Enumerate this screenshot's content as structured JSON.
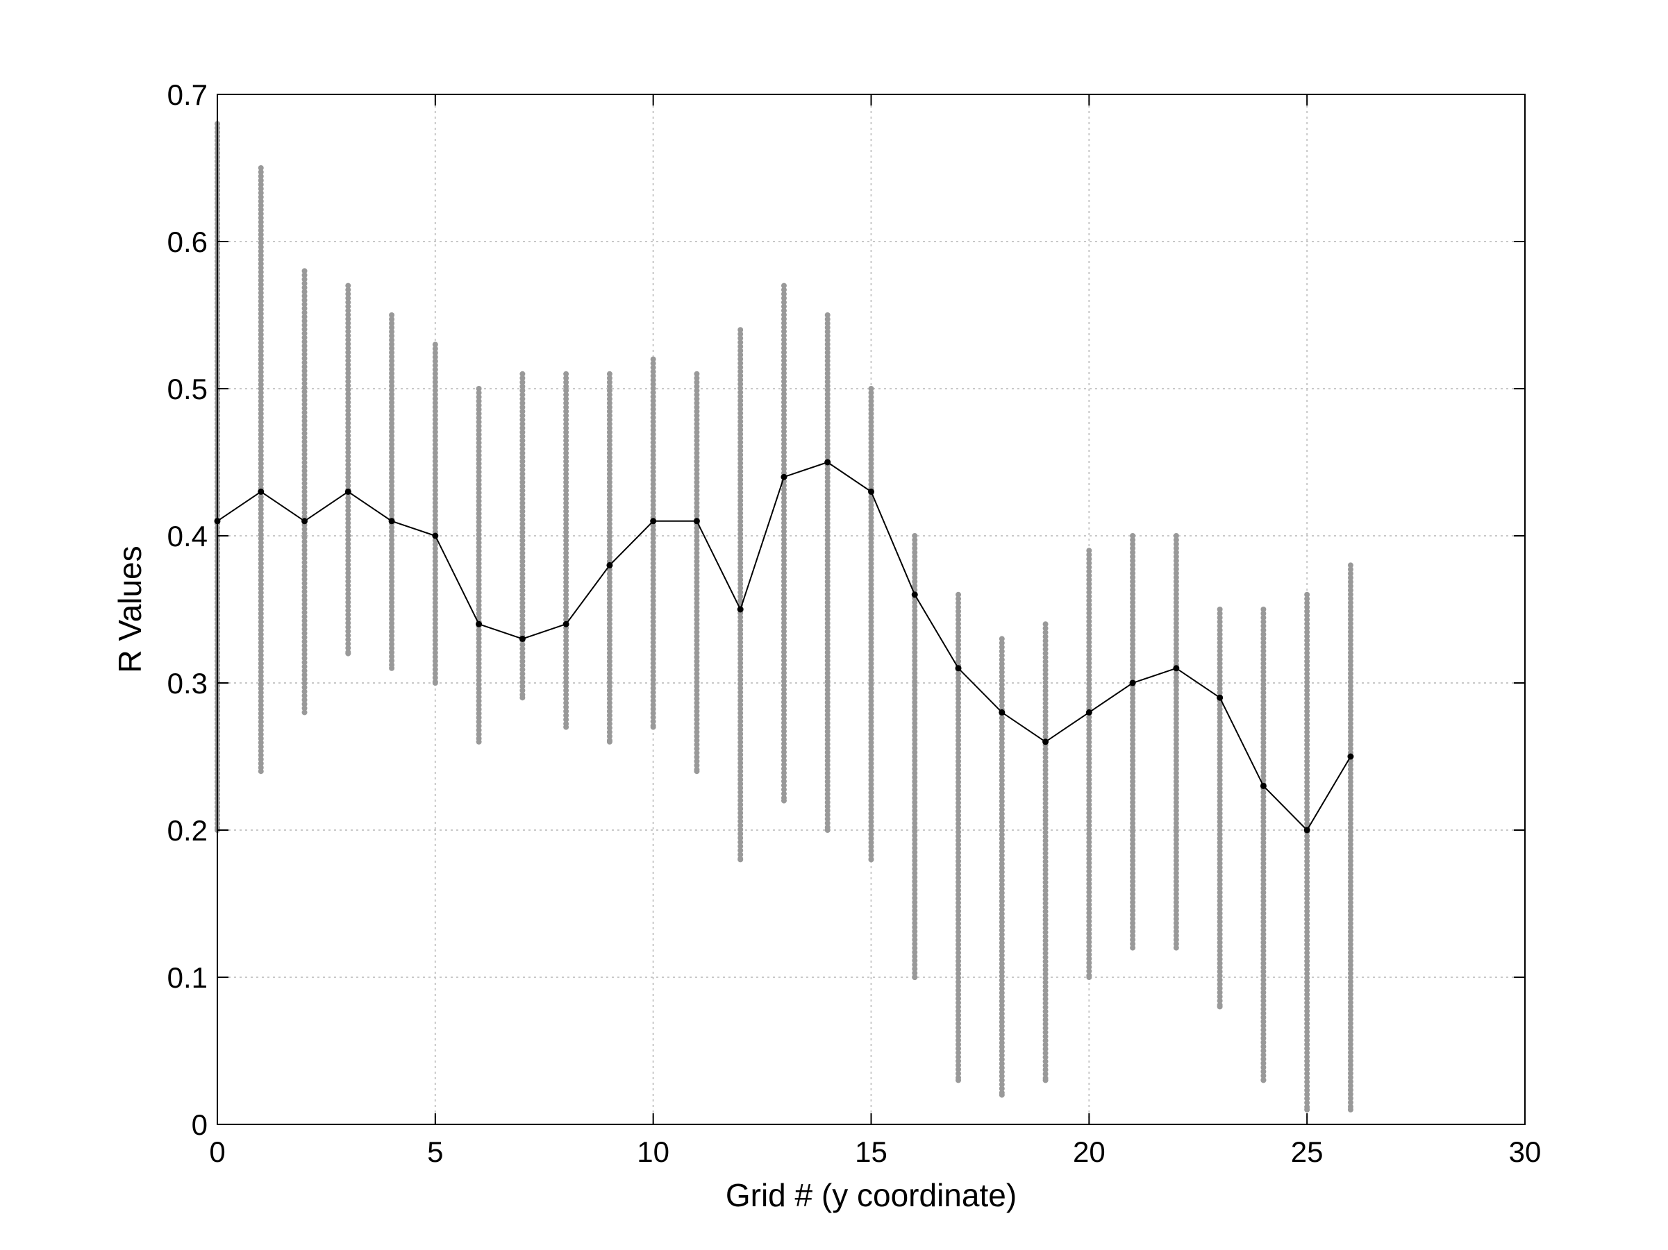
{
  "chart_data": {
    "type": "scatter",
    "title": "",
    "xlabel": "Grid # (y coordinate)",
    "ylabel": "R Values",
    "xlim": [
      0,
      30
    ],
    "ylim": [
      0,
      0.7
    ],
    "xticks": [
      0,
      5,
      10,
      15,
      20,
      25,
      30
    ],
    "yticks": [
      0,
      0.1,
      0.2,
      0.3,
      0.4,
      0.5,
      0.6,
      0.7
    ],
    "grid": true,
    "colors": {
      "scatter": "#999999",
      "mean_line": "#000000",
      "grid": "#c8c8c8"
    },
    "series": [
      {
        "kind": "scatter-range",
        "x": [
          0,
          1,
          2,
          3,
          4,
          5,
          6,
          7,
          8,
          9,
          10,
          11,
          12,
          13,
          14,
          15,
          16,
          17,
          18,
          19,
          20,
          21,
          22,
          23,
          24,
          25,
          26
        ],
        "ymin": [
          0.2,
          0.24,
          0.28,
          0.32,
          0.31,
          0.3,
          0.26,
          0.29,
          0.27,
          0.26,
          0.27,
          0.24,
          0.18,
          0.22,
          0.2,
          0.18,
          0.1,
          0.03,
          0.02,
          0.03,
          0.1,
          0.12,
          0.12,
          0.08,
          0.03,
          0.01,
          0.01
        ],
        "ymax": [
          0.68,
          0.65,
          0.58,
          0.57,
          0.55,
          0.53,
          0.5,
          0.51,
          0.51,
          0.51,
          0.52,
          0.51,
          0.54,
          0.57,
          0.55,
          0.5,
          0.4,
          0.36,
          0.33,
          0.34,
          0.39,
          0.4,
          0.4,
          0.35,
          0.35,
          0.36,
          0.38
        ]
      },
      {
        "kind": "line",
        "x": [
          0,
          1,
          2,
          3,
          4,
          5,
          6,
          7,
          8,
          9,
          10,
          11,
          12,
          13,
          14,
          15,
          16,
          17,
          18,
          19,
          20,
          21,
          22,
          23,
          24,
          25,
          26
        ],
        "y": [
          0.41,
          0.43,
          0.41,
          0.43,
          0.41,
          0.4,
          0.34,
          0.33,
          0.34,
          0.38,
          0.41,
          0.41,
          0.35,
          0.44,
          0.45,
          0.43,
          0.36,
          0.31,
          0.28,
          0.26,
          0.28,
          0.3,
          0.31,
          0.29,
          0.23,
          0.2,
          0.25
        ]
      }
    ]
  }
}
